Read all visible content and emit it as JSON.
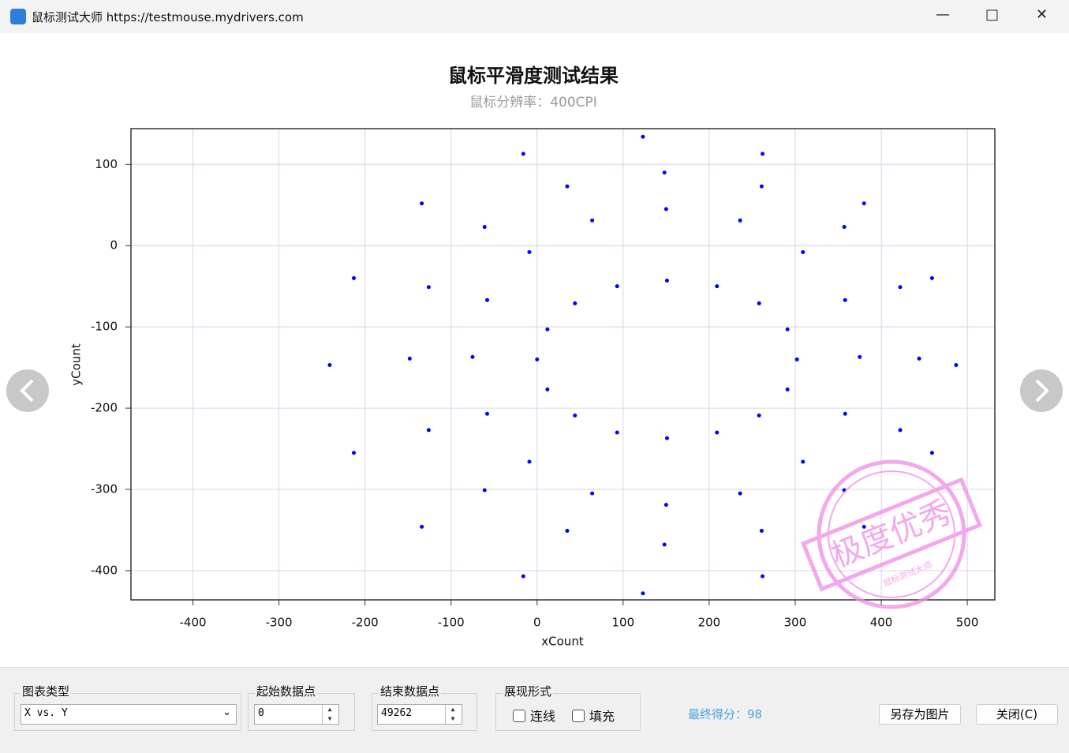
{
  "window": {
    "title": "鼠标测试大师 https://testmouse.mydrivers.com"
  },
  "chart_data": {
    "type": "scatter",
    "title": "鼠标平滑度测试结果",
    "subtitle": "鼠标分辨率：400CPI",
    "x_label": "xCount",
    "y_label": "yCount",
    "color": "#0000ff",
    "grid": true,
    "xlim": [
      -472,
      532
    ],
    "ylim": [
      -436,
      144
    ],
    "xticks": [
      -400,
      -300,
      -200,
      -100,
      0,
      100,
      200,
      300,
      400,
      500
    ],
    "yticks": [
      -400,
      -300,
      -200,
      -100,
      0,
      100
    ],
    "x": [
      302,
      291,
      258,
      209,
      151,
      93,
      44,
      12,
      0,
      12,
      44,
      93,
      151,
      209,
      258,
      291,
      487,
      459,
      380,
      262,
      123,
      -16,
      -134,
      -213,
      -241,
      -213,
      -134,
      -16,
      123,
      262,
      380,
      459,
      444,
      422,
      357,
      261,
      148,
      35,
      -61,
      -126,
      -148,
      -126,
      -61,
      35,
      148,
      261,
      357,
      422,
      375,
      358,
      309,
      236,
      150,
      64,
      -9,
      -58,
      -75,
      -58,
      -9,
      64,
      150,
      236,
      309,
      358
    ],
    "values": [
      -140,
      -103,
      -71,
      -50,
      -43,
      -50,
      -71,
      -103,
      -140,
      -177,
      -209,
      -230,
      -237,
      -230,
      -209,
      -177,
      -147,
      -40,
      52,
      113,
      134,
      113,
      52,
      -40,
      -147,
      -255,
      -346,
      -407,
      -428,
      -407,
      -346,
      -255,
      -139,
      -51,
      23,
      73,
      90,
      73,
      23,
      -51,
      -139,
      -227,
      -301,
      -351,
      -368,
      -351,
      -301,
      -227,
      -137,
      -67,
      -8,
      31,
      45,
      31,
      -8,
      -67,
      -137,
      -207,
      -266,
      -305,
      -319,
      -305,
      -266,
      -207
    ]
  },
  "stamp": {
    "text": "极度优秀",
    "ring": "鼠标测试大师"
  },
  "controls": {
    "chart_type_label": "图表类型",
    "chart_type_value": "X vs. Y",
    "start_label": "起始数据点",
    "start_value": "0",
    "end_label": "结束数据点",
    "end_value": "49262",
    "display_label": "展现形式",
    "line_option": "连线",
    "fill_option": "填充",
    "score": "最终得分：98",
    "save_button": "另存为图片",
    "close_button": "关闭(C)"
  }
}
